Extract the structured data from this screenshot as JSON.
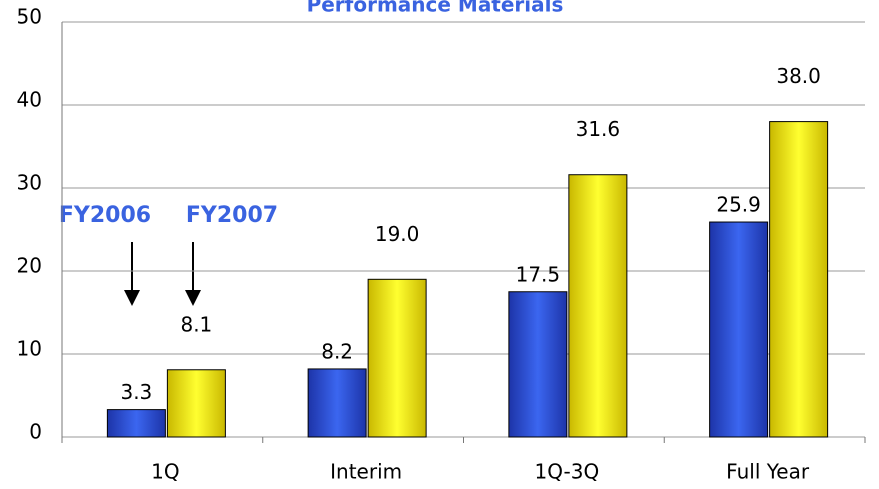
{
  "chart_data": {
    "type": "bar",
    "title": "Performance Materials",
    "categories": [
      "1Q",
      "Interim",
      "1Q-3Q",
      "Full Year"
    ],
    "series": [
      {
        "name": "FY2006",
        "color": "#2b4fe0",
        "values": [
          3.3,
          8.2,
          17.5,
          25.9
        ],
        "value_labels": [
          "3.3",
          "8.2",
          "17.5",
          "25.9"
        ]
      },
      {
        "name": "FY2007",
        "color": "#f2ea00",
        "values": [
          8.1,
          19.0,
          31.6,
          38.0
        ],
        "value_labels": [
          "8.1",
          "19.0",
          "31.6",
          "38.0"
        ]
      }
    ],
    "ylim": [
      0,
      50
    ],
    "yticks": [
      0,
      10,
      20,
      30,
      40,
      50
    ],
    "grid": true
  }
}
